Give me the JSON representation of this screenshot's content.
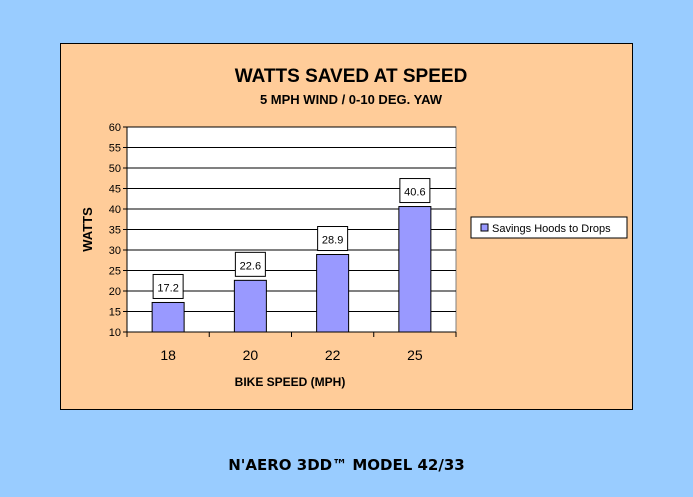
{
  "chart_data": {
    "type": "bar",
    "title": "WATTS SAVED AT SPEED",
    "subtitle": "5 MPH WIND / 0-10 DEG. YAW",
    "xlabel": "BIKE SPEED (MPH)",
    "ylabel": "WATTS",
    "categories": [
      "18",
      "20",
      "22",
      "25"
    ],
    "series": [
      {
        "name": "Savings Hoods to Drops",
        "values": [
          17.2,
          22.6,
          28.9,
          40.6
        ]
      }
    ],
    "ylim": [
      10,
      60
    ],
    "yticks": [
      "60",
      "55",
      "50",
      "45",
      "40",
      "35",
      "30",
      "25",
      "20",
      "15",
      "10"
    ],
    "grid": true,
    "legend": "right",
    "colors": {
      "bar": "#9999ff",
      "plot_background": "#ffffff",
      "chart_background": "#ffcc99",
      "page_background": "#99ccff"
    }
  },
  "footer": {
    "caption": "N'AERO 3DD™ MODEL 42/33"
  }
}
